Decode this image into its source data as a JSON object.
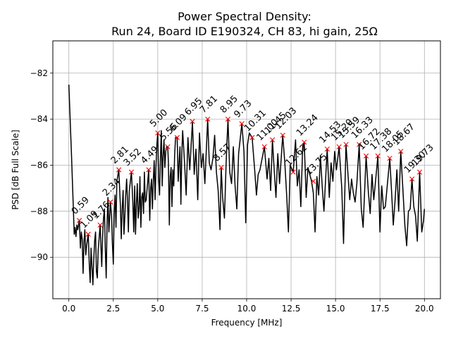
{
  "figure": {
    "title_line1": "Power Spectral Density:",
    "title_line2": "Run 24, Board ID E190324, CH 83, hi gain, 25Ω"
  },
  "chart_data": {
    "type": "line",
    "title": "Power Spectral Density:\nRun 24, Board ID E190324, CH 83, hi gain, 25Ω",
    "xlabel": "Frequency [MHz]",
    "ylabel": "PSD [dB Full Scale]",
    "xlim": [
      -0.9,
      20.9
    ],
    "ylim": [
      -91.8,
      -80.6
    ],
    "xticks": [
      0.0,
      2.5,
      5.0,
      7.5,
      10.0,
      12.5,
      15.0,
      17.5,
      20.0
    ],
    "xtick_labels": [
      "0.0",
      "2.5",
      "5.0",
      "7.5",
      "10.0",
      "12.5",
      "15.0",
      "17.5",
      "20.0"
    ],
    "yticks": [
      -90,
      -88,
      -86,
      -84,
      -82
    ],
    "ytick_labels": [
      "−90",
      "−88",
      "−86",
      "−84",
      "−82"
    ],
    "grid": true,
    "line_color": "#000000",
    "marker_color": "#ff0000",
    "series": [
      {
        "x": [
          0.0,
          0.15,
          0.25,
          0.3,
          0.35,
          0.4,
          0.45,
          0.5,
          0.59,
          0.65,
          0.7,
          0.75,
          0.8,
          0.85,
          0.9,
          0.95,
          1.0,
          1.09,
          1.15,
          1.2,
          1.25,
          1.3,
          1.35,
          1.4,
          1.45,
          1.5,
          1.55,
          1.6,
          1.65,
          1.7,
          1.76,
          1.8,
          1.85,
          1.9,
          1.95,
          2.0,
          2.05,
          2.1,
          2.15,
          2.2,
          2.25,
          2.34,
          2.4,
          2.45,
          2.5,
          2.55,
          2.6,
          2.65,
          2.7,
          2.81,
          2.9,
          2.95,
          3.0,
          3.05,
          3.1,
          3.15,
          3.2,
          3.25,
          3.3,
          3.35,
          3.4,
          3.52,
          3.6,
          3.65,
          3.7,
          3.75,
          3.8,
          3.85,
          3.9,
          3.95,
          4.0,
          4.05,
          4.1,
          4.15,
          4.2,
          4.25,
          4.3,
          4.35,
          4.49,
          4.55,
          4.6,
          4.65,
          4.7,
          4.75,
          4.8,
          4.85,
          4.9,
          4.95,
          5.0,
          5.05,
          5.1,
          5.15,
          5.2,
          5.25,
          5.3,
          5.35,
          5.4,
          5.45,
          5.5,
          5.56,
          5.6,
          5.65,
          5.7,
          5.75,
          5.8,
          5.85,
          5.9,
          5.95,
          6.0,
          6.09,
          6.15,
          6.2,
          6.25,
          6.3,
          6.35,
          6.4,
          6.5,
          6.6,
          6.7,
          6.8,
          6.95,
          7.05,
          7.15,
          7.25,
          7.35,
          7.45,
          7.55,
          7.65,
          7.81,
          7.9,
          8.0,
          8.1,
          8.2,
          8.3,
          8.4,
          8.5,
          8.57,
          8.65,
          8.75,
          8.85,
          8.95,
          9.05,
          9.15,
          9.25,
          9.35,
          9.45,
          9.55,
          9.73,
          9.85,
          9.95,
          10.05,
          10.15,
          10.31,
          10.45,
          10.55,
          10.65,
          10.75,
          10.85,
          11.0,
          11.15,
          11.25,
          11.35,
          11.45,
          11.55,
          11.65,
          11.75,
          11.85,
          12.03,
          12.15,
          12.25,
          12.35,
          12.45,
          12.62,
          12.75,
          12.85,
          12.95,
          13.05,
          13.15,
          13.24,
          13.35,
          13.45,
          13.55,
          13.65,
          13.75,
          13.85,
          13.95,
          14.05,
          14.15,
          14.25,
          14.35,
          14.53,
          14.65,
          14.75,
          14.85,
          14.95,
          15.05,
          15.2,
          15.35,
          15.45,
          15.59,
          15.7,
          15.8,
          15.9,
          16.0,
          16.1,
          16.2,
          16.33,
          16.45,
          16.55,
          16.72,
          16.85,
          16.95,
          17.05,
          17.15,
          17.25,
          17.38,
          17.5,
          17.6,
          17.7,
          17.8,
          18.05,
          18.15,
          18.25,
          18.35,
          18.45,
          18.55,
          18.67,
          18.8,
          18.9,
          19.0,
          19.1,
          19.2,
          19.3,
          19.4,
          19.5,
          19.6,
          19.73,
          19.85,
          19.95,
          20.0
        ],
        "y": [
          -82.5,
          -85.6,
          -87.8,
          -89.0,
          -88.7,
          -89.1,
          -88.6,
          -88.8,
          -88.4,
          -89.6,
          -88.9,
          -89.2,
          -90.7,
          -89.3,
          -88.8,
          -89.9,
          -89.5,
          -89.0,
          -90.3,
          -91.1,
          -89.6,
          -90.4,
          -91.2,
          -90.1,
          -89.3,
          -88.9,
          -90.6,
          -90.9,
          -89.7,
          -89.2,
          -88.6,
          -89.4,
          -90.4,
          -89.1,
          -88.3,
          -87.9,
          -89.6,
          -90.9,
          -88.6,
          -87.4,
          -88.9,
          -87.6,
          -88.2,
          -89.4,
          -90.3,
          -88.1,
          -87.3,
          -88.7,
          -86.7,
          -86.2,
          -87.8,
          -89.2,
          -87.9,
          -87.1,
          -89.0,
          -88.2,
          -87.3,
          -86.6,
          -87.6,
          -88.9,
          -87.1,
          -86.3,
          -87.6,
          -88.9,
          -86.9,
          -89.0,
          -87.7,
          -86.8,
          -88.3,
          -87.9,
          -86.5,
          -88.7,
          -87.4,
          -87.2,
          -88.1,
          -86.3,
          -87.6,
          -87.5,
          -86.2,
          -88.4,
          -87.0,
          -86.6,
          -87.9,
          -86.7,
          -85.8,
          -87.5,
          -86.1,
          -85.1,
          -84.6,
          -86.6,
          -87.3,
          -85.8,
          -84.5,
          -86.9,
          -85.6,
          -84.9,
          -86.1,
          -85.4,
          -85.2,
          -85.2,
          -85.9,
          -88.6,
          -86.5,
          -86.1,
          -87.8,
          -86.2,
          -86.9,
          -85.6,
          -84.8,
          -84.8,
          -86.7,
          -85.9,
          -85.2,
          -87.7,
          -85.6,
          -84.5,
          -85.8,
          -87.3,
          -84.8,
          -86.2,
          -84.1,
          -86.4,
          -85.3,
          -87.5,
          -84.6,
          -86.1,
          -85.5,
          -86.8,
          -84.0,
          -85.9,
          -86.2,
          -85.7,
          -84.7,
          -86.3,
          -87.1,
          -88.8,
          -86.1,
          -87.4,
          -88.3,
          -85.8,
          -84.0,
          -86.3,
          -86.8,
          -85.2,
          -86.9,
          -87.9,
          -85.5,
          -84.2,
          -85.4,
          -88.5,
          -85.1,
          -84.6,
          -84.8,
          -86.2,
          -87.3,
          -86.4,
          -86.2,
          -85.8,
          -85.2,
          -86.6,
          -85.7,
          -87.1,
          -84.9,
          -86.2,
          -87.4,
          -85.5,
          -86.8,
          -84.7,
          -85.9,
          -87.3,
          -88.9,
          -86.0,
          -86.3,
          -84.9,
          -86.9,
          -86.2,
          -87.8,
          -85.2,
          -85.0,
          -87.4,
          -86.1,
          -86.4,
          -86.7,
          -87.2,
          -88.9,
          -86.5,
          -87.3,
          -85.6,
          -86.9,
          -88.0,
          -85.3,
          -87.4,
          -85.9,
          -86.7,
          -85.4,
          -86.2,
          -85.2,
          -87.0,
          -89.4,
          -85.1,
          -86.4,
          -87.5,
          -86.6,
          -87.2,
          -87.6,
          -86.8,
          -85.1,
          -87.9,
          -88.7,
          -85.6,
          -87.2,
          -88.1,
          -86.4,
          -87.5,
          -86.7,
          -85.6,
          -88.9,
          -86.9,
          -87.9,
          -87.8,
          -85.7,
          -87.1,
          -88.6,
          -87.5,
          -86.2,
          -88.0,
          -85.4,
          -87.2,
          -88.6,
          -89.5,
          -88.0,
          -87.9,
          -86.6,
          -87.8,
          -88.2,
          -89.3,
          -86.3,
          -88.9,
          -88.4,
          -87.9
        ]
      }
    ],
    "peaks": [
      {
        "x": 0.59,
        "y": -88.4,
        "label": "0.59"
      },
      {
        "x": 1.09,
        "y": -89.0,
        "label": "1.09"
      },
      {
        "x": 1.76,
        "y": -88.6,
        "label": "1.76"
      },
      {
        "x": 2.34,
        "y": -87.6,
        "label": "2.34"
      },
      {
        "x": 2.81,
        "y": -86.2,
        "label": "2.81"
      },
      {
        "x": 3.52,
        "y": -86.3,
        "label": "3.52"
      },
      {
        "x": 4.49,
        "y": -86.2,
        "label": "4.49"
      },
      {
        "x": 5.0,
        "y": -84.6,
        "label": "5.00"
      },
      {
        "x": 5.56,
        "y": -85.2,
        "label": "5.56"
      },
      {
        "x": 6.09,
        "y": -84.8,
        "label": "6.09"
      },
      {
        "x": 6.95,
        "y": -84.1,
        "label": "6.95"
      },
      {
        "x": 7.81,
        "y": -84.0,
        "label": "7.81"
      },
      {
        "x": 8.57,
        "y": -86.1,
        "label": "8.57"
      },
      {
        "x": 8.95,
        "y": -84.0,
        "label": "8.95"
      },
      {
        "x": 9.73,
        "y": -84.2,
        "label": "9.73"
      },
      {
        "x": 10.31,
        "y": -84.8,
        "label": "10.31"
      },
      {
        "x": 11.0,
        "y": -85.2,
        "label": "11.00"
      },
      {
        "x": 11.45,
        "y": -84.9,
        "label": "11.45"
      },
      {
        "x": 12.03,
        "y": -84.7,
        "label": "12.03"
      },
      {
        "x": 12.62,
        "y": -86.3,
        "label": "12.62"
      },
      {
        "x": 13.24,
        "y": -85.0,
        "label": "13.24"
      },
      {
        "x": 13.75,
        "y": -86.7,
        "label": "13.75"
      },
      {
        "x": 14.53,
        "y": -85.3,
        "label": "14.53"
      },
      {
        "x": 15.2,
        "y": -85.2,
        "label": "15.20"
      },
      {
        "x": 15.59,
        "y": -85.1,
        "label": "15.59"
      },
      {
        "x": 16.33,
        "y": -85.1,
        "label": "16.33"
      },
      {
        "x": 16.72,
        "y": -85.6,
        "label": "16.72"
      },
      {
        "x": 17.38,
        "y": -85.6,
        "label": "17.38"
      },
      {
        "x": 18.05,
        "y": -85.7,
        "label": "18.05"
      },
      {
        "x": 18.67,
        "y": -85.4,
        "label": "18.67"
      },
      {
        "x": 19.3,
        "y": -86.6,
        "label": "19.30"
      },
      {
        "x": 19.73,
        "y": -86.3,
        "label": "19.73"
      }
    ]
  }
}
